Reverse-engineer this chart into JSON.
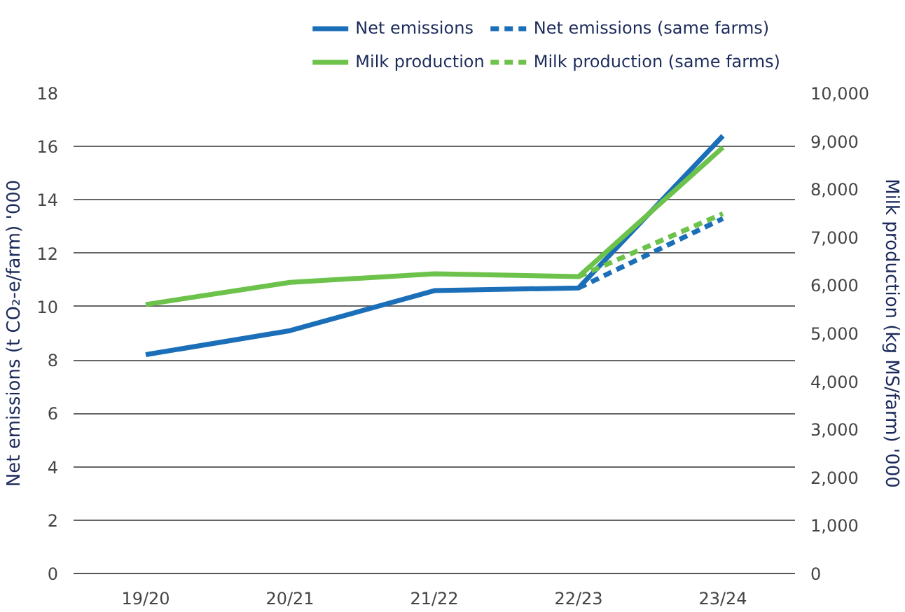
{
  "chart_data": {
    "type": "line",
    "categories": [
      "19/20",
      "20/21",
      "21/22",
      "22/23",
      "23/24"
    ],
    "ylabel": "Net emissions (t CO₂-e/farm) '000",
    "y2label": "Milk production (kg MS/farm) '000",
    "ylim": [
      0,
      18
    ],
    "yticks": [
      0,
      2,
      4,
      6,
      8,
      10,
      12,
      14,
      16,
      18
    ],
    "y2lim": [
      0,
      10000
    ],
    "y2ticks": [
      {
        "value": 0,
        "label": "0"
      },
      {
        "value": 1000,
        "label": "1,000"
      },
      {
        "value": 2000,
        "label": "2,000"
      },
      {
        "value": 3000,
        "label": "3,000"
      },
      {
        "value": 4000,
        "label": "4,000"
      },
      {
        "value": 5000,
        "label": "5,000"
      },
      {
        "value": 6000,
        "label": "6,000"
      },
      {
        "value": 7000,
        "label": "7,000"
      },
      {
        "value": 8000,
        "label": "8,000"
      },
      {
        "value": 9000,
        "label": "9,000"
      },
      {
        "value": 10000,
        "label": "10,000"
      }
    ],
    "grid": "y",
    "legend": "top right",
    "series": [
      {
        "name": "Net emissions",
        "color": "#1a6fb8",
        "values": [
          8.2,
          9.1,
          10.6,
          10.7,
          16.4
        ],
        "line_style": "solid"
      },
      {
        "name": "Net emissions (same farms)",
        "color": "#1a6fb8",
        "values": [
          null,
          null,
          null,
          10.7,
          13.3
        ],
        "line_style": "dashed"
      },
      {
        "name": "Milk production",
        "color": "#6cc24a",
        "values": [
          5600,
          6060,
          6240,
          6180,
          8870
        ],
        "axis": "y2",
        "line_style": "solid"
      },
      {
        "name": "Milk production (same farms)",
        "color": "#6cc24a",
        "values": [
          null,
          null,
          null,
          6180,
          7490
        ],
        "axis": "y2",
        "line_style": "dashed"
      }
    ]
  }
}
